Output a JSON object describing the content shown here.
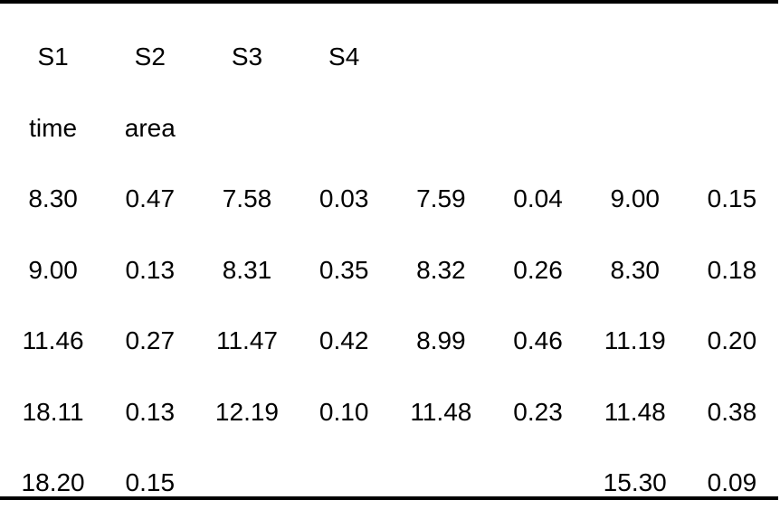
{
  "table": {
    "header_rows": [
      [
        "S1",
        "S2",
        "S3",
        "S4",
        "",
        "",
        "",
        ""
      ],
      [
        "time",
        "area",
        "",
        "",
        "",
        "",
        "",
        ""
      ]
    ],
    "rows": [
      [
        "8.30",
        "0.47",
        "7.58",
        "0.03",
        "7.59",
        "0.04",
        "9.00",
        "0.15"
      ],
      [
        "9.00",
        "0.13",
        "8.31",
        "0.35",
        "8.32",
        "0.26",
        "8.30",
        "0.18"
      ],
      [
        "11.46",
        "0.27",
        "11.47",
        "0.42",
        "8.99",
        "0.46",
        "11.19",
        "0.20"
      ],
      [
        "18.11",
        "0.13",
        "12.19",
        "0.10",
        "11.48",
        "0.23",
        "11.48",
        "0.38"
      ],
      [
        "18.20",
        "0.15",
        "",
        "",
        "",
        "",
        "15.30",
        "0.09"
      ]
    ]
  }
}
